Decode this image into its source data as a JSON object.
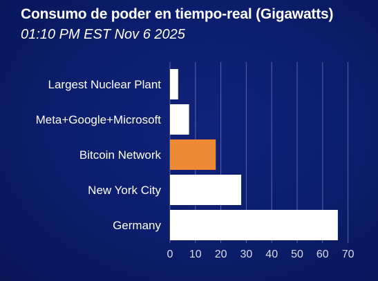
{
  "header": {
    "title": "Consumo de poder en tiempo-real (Gigawatts)",
    "subtitle": "01:10 PM EST Nov 6 2025"
  },
  "colors": {
    "background": "#0b1d6b",
    "bar_default": "#ffffff",
    "bar_highlight": "#ee8a33",
    "gridline": "#5865a8"
  },
  "chart_data": {
    "type": "bar",
    "orientation": "horizontal",
    "title": "Consumo de poder en tiempo-real (Gigawatts)",
    "subtitle": "01:10 PM EST Nov 6 2025",
    "categories": [
      "Largest Nuclear Plant",
      "Meta+Google+Microsoft",
      "Bitcoin Network",
      "New York City",
      "Germany"
    ],
    "values": [
      3.2,
      7.5,
      18,
      28,
      66
    ],
    "highlight_index": 2,
    "xlim": [
      0,
      70
    ],
    "xticks": [
      0,
      10,
      20,
      30,
      40,
      50,
      60,
      70
    ],
    "grid": true,
    "xlabel": "",
    "ylabel": ""
  }
}
